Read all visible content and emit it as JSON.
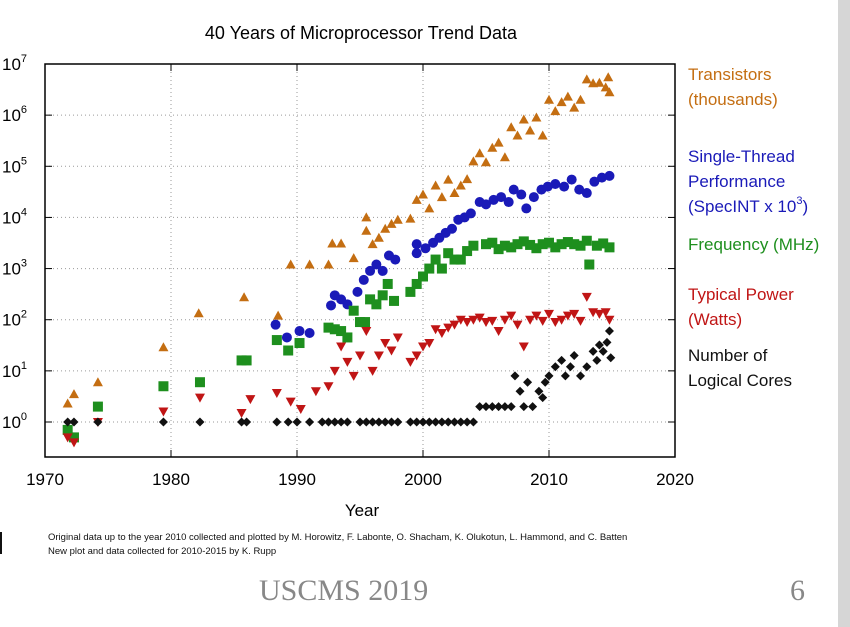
{
  "footer": {
    "event": "USCMS 2019",
    "page_number": "6"
  },
  "credits": {
    "line1": "Original data up to the year 2010 collected and plotted by M. Horowitz, F. Labonte, O. Shacham, K. Olukotun, L. Hammond, and C. Batten",
    "line2": "New plot and data collected for 2010-2015 by K. Rupp"
  },
  "chart_data": {
    "type": "scatter",
    "title": "40 Years of Microprocessor Trend Data",
    "xlabel": "Year",
    "ylabel": "",
    "xlim": [
      1970,
      2020
    ],
    "ylim": [
      0.2,
      10000000
    ],
    "yscale": "log",
    "grid": true,
    "legend_position": "right",
    "x_ticks": [
      1970,
      1980,
      1990,
      2000,
      2010,
      2020
    ],
    "y_ticks": [
      {
        "value": 1,
        "base": "10",
        "exp": "0"
      },
      {
        "value": 10,
        "base": "10",
        "exp": "1"
      },
      {
        "value": 100,
        "base": "10",
        "exp": "2"
      },
      {
        "value": 1000,
        "base": "10",
        "exp": "3"
      },
      {
        "value": 10000,
        "base": "10",
        "exp": "4"
      },
      {
        "value": 100000,
        "base": "10",
        "exp": "5"
      },
      {
        "value": 1000000,
        "base": "10",
        "exp": "6"
      },
      {
        "value": 10000000,
        "base": "10",
        "exp": "7"
      }
    ],
    "series": [
      {
        "name": "Transistors (thousands)",
        "legend_lines": [
          "Transistors",
          "(thousands)"
        ],
        "color": "#c46e12",
        "marker": "triangle-up",
        "points": [
          [
            1971.8,
            2.3
          ],
          [
            1972.3,
            3.5
          ],
          [
            1974.2,
            6
          ],
          [
            1979.4,
            29
          ],
          [
            1982.2,
            134
          ],
          [
            1985.8,
            275
          ],
          [
            1988.5,
            120
          ],
          [
            1989.5,
            1200
          ],
          [
            1991,
            1200
          ],
          [
            1992.5,
            1200
          ],
          [
            1992.8,
            3100
          ],
          [
            1993.5,
            3100
          ],
          [
            1994.5,
            1600
          ],
          [
            1995.5,
            5500
          ],
          [
            1995.5,
            10000
          ],
          [
            1996,
            3000
          ],
          [
            1996.5,
            4000
          ],
          [
            1997,
            6000
          ],
          [
            1997.5,
            7500
          ],
          [
            1998,
            9000
          ],
          [
            1999,
            9500
          ],
          [
            1999.5,
            22000
          ],
          [
            2000,
            28000
          ],
          [
            2000.5,
            15000
          ],
          [
            2001,
            42000
          ],
          [
            2001.5,
            25000
          ],
          [
            2002,
            55000
          ],
          [
            2002.5,
            30000
          ],
          [
            2003,
            42000
          ],
          [
            2003.5,
            56000
          ],
          [
            2004,
            125000
          ],
          [
            2004.5,
            180000
          ],
          [
            2005,
            120000
          ],
          [
            2005.5,
            230000
          ],
          [
            2006,
            290000
          ],
          [
            2006.5,
            150000
          ],
          [
            2007,
            580000
          ],
          [
            2007.5,
            400000
          ],
          [
            2008,
            820000
          ],
          [
            2008.5,
            500000
          ],
          [
            2009,
            900000
          ],
          [
            2009.5,
            400000
          ],
          [
            2010,
            2000000
          ],
          [
            2010.5,
            1200000
          ],
          [
            2011,
            1800000
          ],
          [
            2011.5,
            2300000
          ],
          [
            2012,
            1400000
          ],
          [
            2012.5,
            2000000
          ],
          [
            2013,
            5000000
          ],
          [
            2013.5,
            4200000
          ],
          [
            2014,
            4300000
          ],
          [
            2014.5,
            3500000
          ],
          [
            2014.7,
            5500000
          ],
          [
            2014.8,
            2800000
          ]
        ]
      },
      {
        "name": "Single-Thread Performance (SpecINT x 10^3)",
        "legend_lines": [
          "Single-Thread",
          "Performance",
          "(SpecINT x 10",
          "3",
          ")"
        ],
        "color": "#1a1ab8",
        "marker": "circle",
        "points": [
          [
            1988.3,
            80
          ],
          [
            1989.2,
            45
          ],
          [
            1990.2,
            60
          ],
          [
            1991,
            55
          ],
          [
            1992.7,
            190
          ],
          [
            1993,
            300
          ],
          [
            1993.5,
            250
          ],
          [
            1994,
            200
          ],
          [
            1994.8,
            350
          ],
          [
            1995.3,
            600
          ],
          [
            1995.8,
            900
          ],
          [
            1996.3,
            1200
          ],
          [
            1996.8,
            900
          ],
          [
            1997.3,
            1800
          ],
          [
            1997.8,
            1500
          ],
          [
            1999.5,
            3000
          ],
          [
            1999.5,
            2000
          ],
          [
            2000.2,
            2500
          ],
          [
            2000.8,
            3200
          ],
          [
            2001.3,
            4000
          ],
          [
            2001.8,
            5000
          ],
          [
            2002.3,
            6000
          ],
          [
            2002.8,
            9000
          ],
          [
            2003.3,
            10000
          ],
          [
            2003.8,
            12000
          ],
          [
            2004.5,
            20000
          ],
          [
            2005,
            18000
          ],
          [
            2005.6,
            22000
          ],
          [
            2006.2,
            25000
          ],
          [
            2006.8,
            20000
          ],
          [
            2007.2,
            35000
          ],
          [
            2007.8,
            28000
          ],
          [
            2008.2,
            15000
          ],
          [
            2008.8,
            25000
          ],
          [
            2009.4,
            35000
          ],
          [
            2009.9,
            40000
          ],
          [
            2010.5,
            45000
          ],
          [
            2011.2,
            40000
          ],
          [
            2011.8,
            55000
          ],
          [
            2012.4,
            35000
          ],
          [
            2013,
            30000
          ],
          [
            2013.6,
            50000
          ],
          [
            2014.2,
            60000
          ],
          [
            2014.8,
            65000
          ]
        ]
      },
      {
        "name": "Frequency (MHz)",
        "legend_lines": [
          "Frequency (MHz)"
        ],
        "color": "#1e8f1e",
        "marker": "square",
        "points": [
          [
            1971.8,
            0.7
          ],
          [
            1972.3,
            0.5
          ],
          [
            1974.2,
            2
          ],
          [
            1979.4,
            5
          ],
          [
            1982.3,
            6
          ],
          [
            1985.6,
            16
          ],
          [
            1986,
            16
          ],
          [
            1988.4,
            40
          ],
          [
            1989.3,
            25
          ],
          [
            1990.2,
            35
          ],
          [
            1992.5,
            70
          ],
          [
            1993,
            65
          ],
          [
            1993.5,
            60
          ],
          [
            1994,
            45
          ],
          [
            1994.5,
            150
          ],
          [
            1995,
            90
          ],
          [
            1995.4,
            90
          ],
          [
            1995.8,
            250
          ],
          [
            1996.3,
            200
          ],
          [
            1996.8,
            300
          ],
          [
            1997.2,
            500
          ],
          [
            1997.7,
            233
          ],
          [
            1999,
            350
          ],
          [
            1999.5,
            500
          ],
          [
            2000,
            700
          ],
          [
            2000.5,
            1000
          ],
          [
            2001,
            1500
          ],
          [
            2001.5,
            1000
          ],
          [
            2002,
            2000
          ],
          [
            2002.5,
            1500
          ],
          [
            2003,
            1500
          ],
          [
            2003.5,
            2200
          ],
          [
            2004,
            2800
          ],
          [
            2005,
            3000
          ],
          [
            2005.5,
            3200
          ],
          [
            2006,
            2400
          ],
          [
            2006.5,
            2800
          ],
          [
            2007,
            2600
          ],
          [
            2007.5,
            3000
          ],
          [
            2008,
            3400
          ],
          [
            2008.5,
            2900
          ],
          [
            2009,
            2500
          ],
          [
            2009.5,
            3000
          ],
          [
            2010,
            3200
          ],
          [
            2010.5,
            2600
          ],
          [
            2011,
            3000
          ],
          [
            2011.5,
            3300
          ],
          [
            2012,
            3000
          ],
          [
            2012.5,
            2800
          ],
          [
            2013,
            3500
          ],
          [
            2013.2,
            1200
          ],
          [
            2013.8,
            2800
          ],
          [
            2014.3,
            3100
          ],
          [
            2014.8,
            2600
          ]
        ]
      },
      {
        "name": "Typical Power (Watts)",
        "legend_lines": [
          "Typical Power",
          "(Watts)"
        ],
        "color": "#c01515",
        "marker": "triangle-down",
        "points": [
          [
            1971.8,
            0.5
          ],
          [
            1972.3,
            0.4
          ],
          [
            1974.2,
            1
          ],
          [
            1979.4,
            1.6
          ],
          [
            1982.3,
            3
          ],
          [
            1985.6,
            1.5
          ],
          [
            1986.3,
            2.8
          ],
          [
            1988.4,
            3.7
          ],
          [
            1989.5,
            2.5
          ],
          [
            1990.3,
            1.8
          ],
          [
            1991.5,
            4
          ],
          [
            1992.5,
            5
          ],
          [
            1993,
            10
          ],
          [
            1993.5,
            30
          ],
          [
            1994,
            15
          ],
          [
            1994.5,
            8
          ],
          [
            1995,
            20
          ],
          [
            1995.5,
            60
          ],
          [
            1996,
            10
          ],
          [
            1996.5,
            20
          ],
          [
            1997,
            35
          ],
          [
            1997.5,
            25
          ],
          [
            1998,
            45
          ],
          [
            1999,
            15
          ],
          [
            1999.5,
            20
          ],
          [
            2000,
            30
          ],
          [
            2000.5,
            35
          ],
          [
            2001,
            65
          ],
          [
            2001.5,
            55
          ],
          [
            2002,
            70
          ],
          [
            2002.5,
            80
          ],
          [
            2003,
            100
          ],
          [
            2003.5,
            90
          ],
          [
            2004,
            100
          ],
          [
            2004.5,
            110
          ],
          [
            2005,
            90
          ],
          [
            2005.5,
            95
          ],
          [
            2006,
            60
          ],
          [
            2006.5,
            100
          ],
          [
            2007,
            120
          ],
          [
            2007.5,
            80
          ],
          [
            2008,
            30
          ],
          [
            2008.5,
            100
          ],
          [
            2009,
            120
          ],
          [
            2009.5,
            95
          ],
          [
            2010,
            130
          ],
          [
            2010.5,
            90
          ],
          [
            2011,
            100
          ],
          [
            2011.5,
            120
          ],
          [
            2012,
            130
          ],
          [
            2012.5,
            95
          ],
          [
            2013,
            280
          ],
          [
            2013.5,
            140
          ],
          [
            2014,
            130
          ],
          [
            2014.5,
            140
          ],
          [
            2014.8,
            100
          ]
        ]
      },
      {
        "name": "Number of Logical Cores",
        "legend_lines": [
          "Number of",
          "Logical Cores"
        ],
        "color": "#111111",
        "marker": "diamond",
        "points": [
          [
            1971.8,
            1
          ],
          [
            1972.3,
            1
          ],
          [
            1974.2,
            1
          ],
          [
            1979.4,
            1
          ],
          [
            1982.3,
            1
          ],
          [
            1985.6,
            1
          ],
          [
            1986,
            1
          ],
          [
            1988.4,
            1
          ],
          [
            1989.3,
            1
          ],
          [
            1990,
            1
          ],
          [
            1991,
            1
          ],
          [
            1992,
            1
          ],
          [
            1992.5,
            1
          ],
          [
            1993,
            1
          ],
          [
            1993.5,
            1
          ],
          [
            1994,
            1
          ],
          [
            1995,
            1
          ],
          [
            1995.5,
            1
          ],
          [
            1996,
            1
          ],
          [
            1996.5,
            1
          ],
          [
            1997,
            1
          ],
          [
            1997.5,
            1
          ],
          [
            1998,
            1
          ],
          [
            1999,
            1
          ],
          [
            1999.5,
            1
          ],
          [
            2000,
            1
          ],
          [
            2000.5,
            1
          ],
          [
            2001,
            1
          ],
          [
            2001.5,
            1
          ],
          [
            2002,
            1
          ],
          [
            2002.5,
            1
          ],
          [
            2003,
            1
          ],
          [
            2003.5,
            1
          ],
          [
            2004,
            1
          ],
          [
            2004.5,
            2
          ],
          [
            2005,
            2
          ],
          [
            2005.5,
            2
          ],
          [
            2006,
            2
          ],
          [
            2006.5,
            2
          ],
          [
            2007,
            2
          ],
          [
            2007.3,
            8
          ],
          [
            2007.7,
            4
          ],
          [
            2008,
            2
          ],
          [
            2008.3,
            6
          ],
          [
            2008.7,
            2
          ],
          [
            2009.2,
            4
          ],
          [
            2009.5,
            3
          ],
          [
            2009.7,
            6
          ],
          [
            2010,
            8
          ],
          [
            2010.5,
            12
          ],
          [
            2011,
            16
          ],
          [
            2011.3,
            8
          ],
          [
            2011.7,
            12
          ],
          [
            2012,
            20
          ],
          [
            2012.5,
            8
          ],
          [
            2013,
            12
          ],
          [
            2013.5,
            24
          ],
          [
            2013.8,
            16
          ],
          [
            2014,
            32
          ],
          [
            2014.3,
            24
          ],
          [
            2014.6,
            36
          ],
          [
            2014.8,
            60
          ],
          [
            2014.9,
            18
          ]
        ]
      }
    ]
  }
}
